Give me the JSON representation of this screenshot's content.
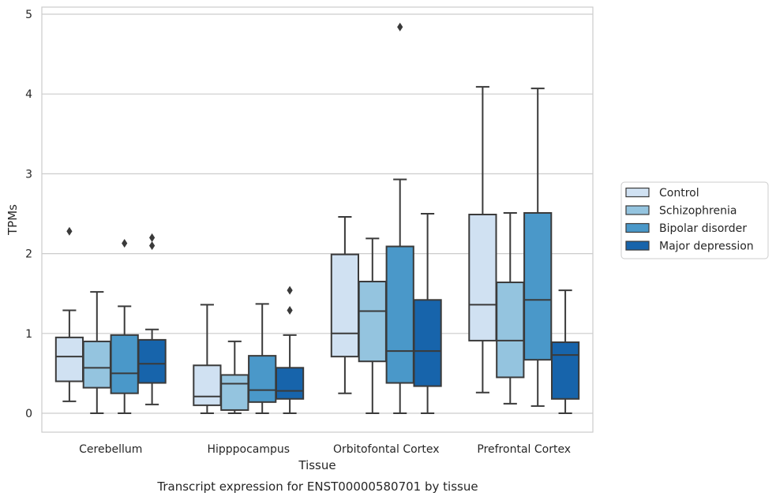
{
  "chart_data": {
    "type": "box",
    "xlabel": "Tissue",
    "ylabel": "TPMs",
    "caption": "Transcript expression for ENST00000580701 by tissue",
    "ylim": [
      -0.23,
      5.1
    ],
    "yticks": [
      0,
      1,
      2,
      3,
      4,
      5
    ],
    "grid": "horizontal",
    "legend_position": "right",
    "categories": [
      "Cerebellum",
      "Hipppocampus",
      "Orbitofontal Cortex",
      "Prefrontal Cortex"
    ],
    "series": [
      {
        "name": "Control",
        "color": "#d0e1f2",
        "boxes": [
          {
            "whislo": 0.15,
            "q1": 0.4,
            "med": 0.71,
            "q3": 0.95,
            "whishi": 1.29,
            "fliers": [
              2.28
            ]
          },
          {
            "whislo": 0.0,
            "q1": 0.1,
            "med": 0.21,
            "q3": 0.6,
            "whishi": 1.36,
            "fliers": []
          },
          {
            "whislo": 0.25,
            "q1": 0.71,
            "med": 1.0,
            "q3": 1.99,
            "whishi": 2.46,
            "fliers": []
          },
          {
            "whislo": 0.26,
            "q1": 0.91,
            "med": 1.36,
            "q3": 2.49,
            "whishi": 4.09,
            "fliers": []
          }
        ]
      },
      {
        "name": "Schizophrenia",
        "color": "#94c4df",
        "boxes": [
          {
            "whislo": 0.0,
            "q1": 0.32,
            "med": 0.57,
            "q3": 0.9,
            "whishi": 1.52,
            "fliers": []
          },
          {
            "whislo": 0.0,
            "q1": 0.04,
            "med": 0.37,
            "q3": 0.48,
            "whishi": 0.9,
            "fliers": []
          },
          {
            "whislo": 0.0,
            "q1": 0.65,
            "med": 1.28,
            "q3": 1.65,
            "whishi": 2.19,
            "fliers": []
          },
          {
            "whislo": 0.12,
            "q1": 0.45,
            "med": 0.91,
            "q3": 1.64,
            "whishi": 2.51,
            "fliers": []
          }
        ]
      },
      {
        "name": "Bipolar disorder",
        "color": "#4a98c9",
        "boxes": [
          {
            "whislo": 0.0,
            "q1": 0.25,
            "med": 0.5,
            "q3": 0.98,
            "whishi": 1.34,
            "fliers": [
              2.13
            ]
          },
          {
            "whislo": 0.0,
            "q1": 0.14,
            "med": 0.29,
            "q3": 0.72,
            "whishi": 1.37,
            "fliers": []
          },
          {
            "whislo": 0.0,
            "q1": 0.38,
            "med": 0.78,
            "q3": 2.09,
            "whishi": 2.93,
            "fliers": [
              4.84
            ]
          },
          {
            "whislo": 0.09,
            "q1": 0.67,
            "med": 1.42,
            "q3": 2.51,
            "whishi": 4.07,
            "fliers": []
          }
        ]
      },
      {
        "name": "Major depression",
        "color": "#1764ab",
        "boxes": [
          {
            "whislo": 0.11,
            "q1": 0.38,
            "med": 0.62,
            "q3": 0.92,
            "whishi": 1.05,
            "fliers": [
              2.1,
              2.2
            ]
          },
          {
            "whislo": 0.0,
            "q1": 0.18,
            "med": 0.28,
            "q3": 0.57,
            "whishi": 0.98,
            "fliers": [
              1.29,
              1.54
            ]
          },
          {
            "whislo": 0.0,
            "q1": 0.34,
            "med": 0.78,
            "q3": 1.42,
            "whishi": 2.5,
            "fliers": []
          },
          {
            "whislo": 0.0,
            "q1": 0.18,
            "med": 0.73,
            "q3": 0.89,
            "whishi": 1.54,
            "fliers": []
          }
        ]
      }
    ]
  }
}
